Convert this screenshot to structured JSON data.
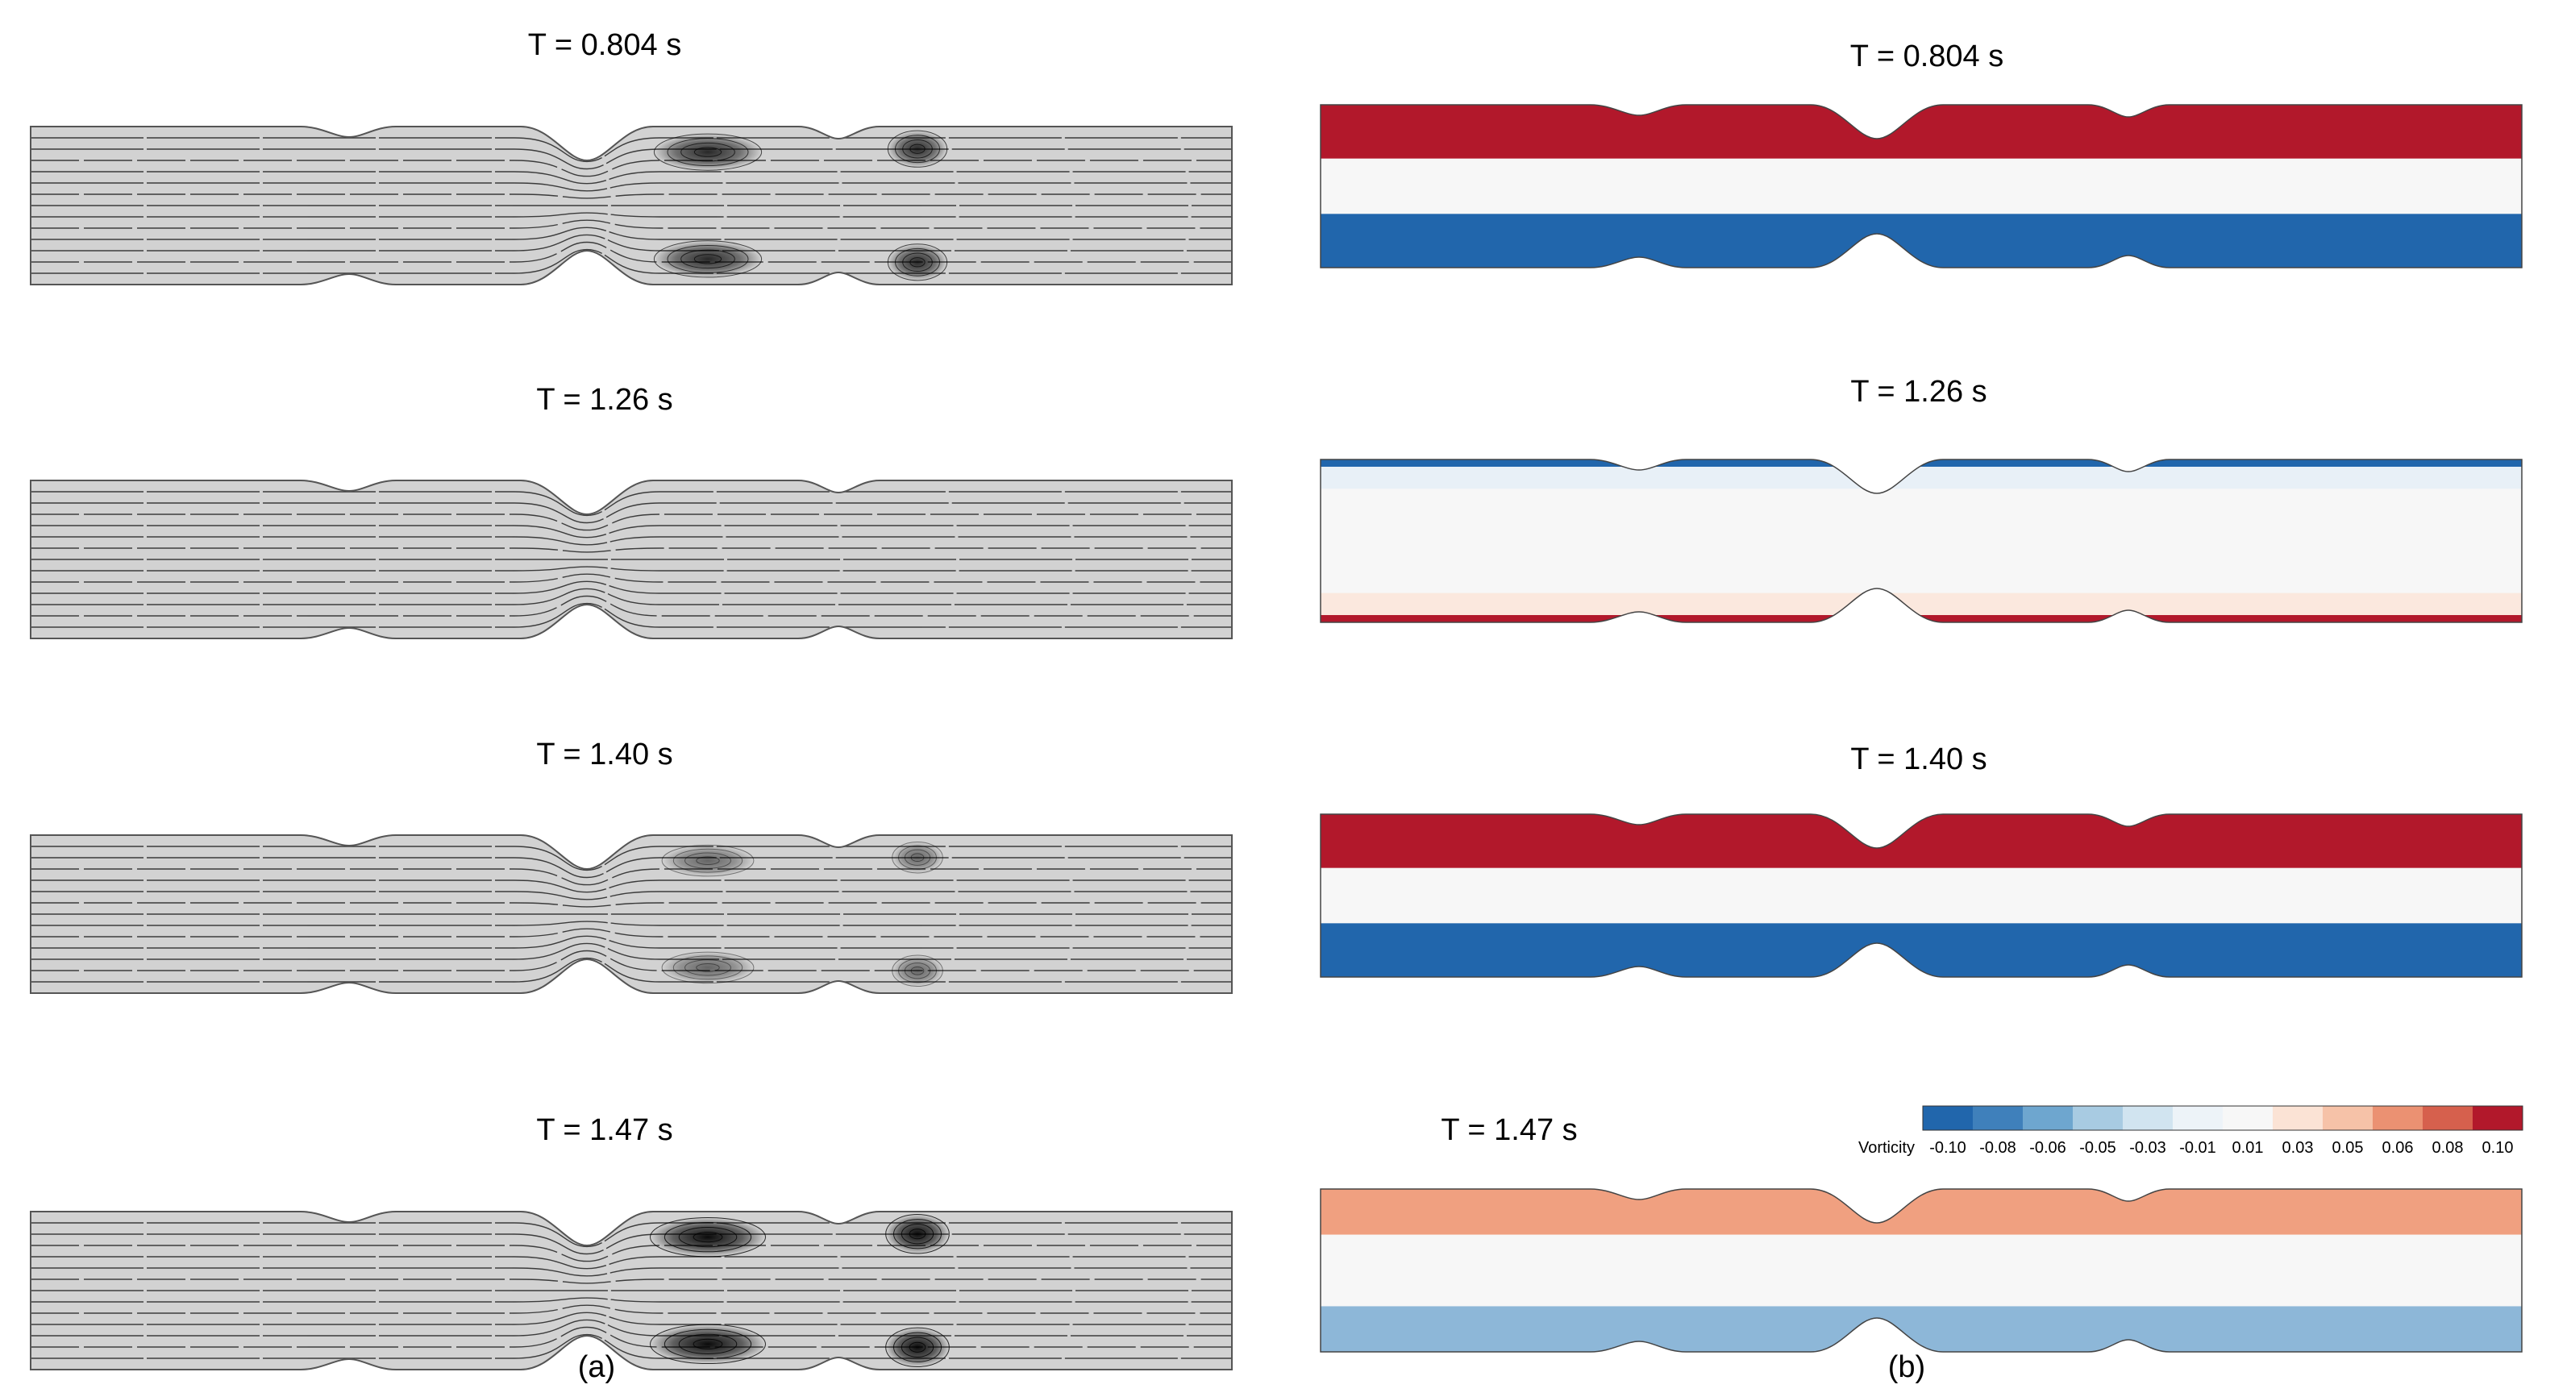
{
  "panels": {
    "a": {
      "label": "(a)",
      "rows": [
        {
          "time_label": "T = 0.804 s",
          "recirculation": 0.85
        },
        {
          "time_label": "T = 1.26 s",
          "recirculation": 0.0
        },
        {
          "time_label": "T = 1.40 s",
          "recirculation": 0.55
        },
        {
          "time_label": "T = 1.47 s",
          "recirculation": 1.0
        }
      ]
    },
    "b": {
      "label": "(b)",
      "rows": [
        {
          "time_label": "T = 0.804 s",
          "wall_vorticity": 0.1
        },
        {
          "time_label": "T = 1.26 s",
          "wall_vorticity": 0.01
        },
        {
          "time_label": "T = 1.40 s",
          "wall_vorticity": 0.1
        },
        {
          "time_label": "T = 1.47 s",
          "wall_vorticity": 0.05
        }
      ]
    }
  },
  "colorbar": {
    "title": "Vorticity",
    "ticks": [
      "-0.10",
      "-0.08",
      "-0.06",
      "-0.05",
      "-0.03",
      "-0.01",
      "0.01",
      "0.03",
      "0.05",
      "0.06",
      "0.08",
      "0.10"
    ],
    "colors": [
      "#2166ac",
      "#3f80bb",
      "#6ea6cf",
      "#a8cbe2",
      "#d1e4f0",
      "#edf3f8",
      "#f7f7f7",
      "#fbe3d5",
      "#f6c2a8",
      "#eb9172",
      "#d6604d",
      "#b2182b"
    ]
  },
  "colors": {
    "streamline_background": "#d2d2d2",
    "streamline_lines": "#222222",
    "vorticity_positive": "#b2182b",
    "vorticity_negative": "#2166ac",
    "vorticity_neutral": "#f7f7f7"
  }
}
